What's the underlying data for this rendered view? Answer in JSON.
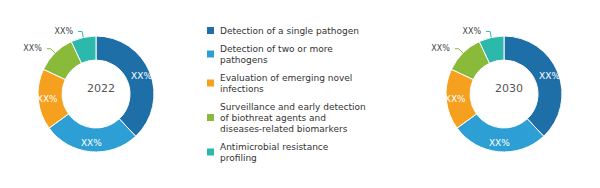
{
  "chart_data": [
    {
      "type": "pie",
      "title": "2022",
      "categories": [
        "Detection of a single pathogen",
        "Detection of two or more\npathogens",
        "Evaluation of emerging novel\ninfections",
        "Surveillance and early detection\nof biothreat agents and\ndiseases-related biomarkers",
        "Antimicrobial resistance\nprofiling"
      ],
      "values": [
        38,
        27,
        17,
        11,
        7
      ],
      "value_labels": [
        "XX%",
        "XX%",
        "XX%",
        "XX%",
        "XX%"
      ],
      "colors": [
        "#1e6fa8",
        "#2e9fd4",
        "#f5a01e",
        "#8aba3a",
        "#2cb8aa"
      ],
      "data_labels": true,
      "legend": "center"
    },
    {
      "type": "pie",
      "title": "2030",
      "categories": [
        "Detection of a single pathogen",
        "Detection of two or more\npathogens",
        "Evaluation of emerging novel\ninfections",
        "Surveillance and early detection\nof biothreat agents and\ndiseases-related biomarkers",
        "Antimicrobial resistance\nprofiling"
      ],
      "values": [
        38,
        27,
        17,
        11,
        7
      ],
      "value_labels": [
        "XX%",
        "XX%",
        "XX%",
        "XX%",
        "XX%"
      ],
      "colors": [
        "#1e6fa8",
        "#2e9fd4",
        "#f5a01e",
        "#8aba3a",
        "#2cb8aa"
      ],
      "data_labels": true,
      "legend": "center"
    }
  ]
}
